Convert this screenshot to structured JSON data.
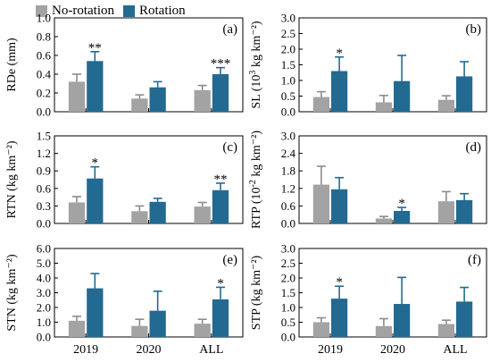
{
  "legend": {
    "no_rotation": "No-rotation",
    "rotation": "Rotation"
  },
  "colors": {
    "no_rotation": "#a3a3a3",
    "rotation": "#236a92",
    "error_bar": "#236a92",
    "error_bar_gray": "#8c8c8c"
  },
  "chart_data": [
    {
      "type": "bar",
      "panel": "(a)",
      "ylabel": "RDe (mm)",
      "ylabel_sup": "",
      "ylabel_tail": "",
      "categories": [
        "2019",
        "2020",
        "ALL"
      ],
      "ylim": [
        0,
        1.0
      ],
      "yticks": [
        "0.0",
        "0.2",
        "0.4",
        "0.6",
        "0.8",
        "1.0"
      ],
      "series": [
        {
          "name": "No-rotation",
          "values": [
            0.32,
            0.14,
            0.23
          ],
          "errors": [
            0.08,
            0.04,
            0.05
          ]
        },
        {
          "name": "Rotation",
          "values": [
            0.54,
            0.26,
            0.4
          ],
          "errors": [
            0.1,
            0.06,
            0.07
          ]
        }
      ],
      "significance": [
        "**",
        "",
        "***"
      ],
      "show_xticklabels": false
    },
    {
      "type": "bar",
      "panel": "(b)",
      "ylabel": "SL (10",
      "ylabel_sup": "3",
      "ylabel_tail": " kg km⁻²)",
      "categories": [
        "2019",
        "2020",
        "ALL"
      ],
      "ylim": [
        0,
        3.0
      ],
      "yticks": [
        "0.0",
        "0.5",
        "1.0",
        "1.5",
        "2.0",
        "2.5",
        "3.0"
      ],
      "series": [
        {
          "name": "No-rotation",
          "values": [
            0.47,
            0.3,
            0.38
          ],
          "errors": [
            0.17,
            0.22,
            0.13
          ]
        },
        {
          "name": "Rotation",
          "values": [
            1.3,
            0.98,
            1.13
          ],
          "errors": [
            0.45,
            0.82,
            0.47
          ]
        }
      ],
      "significance": [
        "*",
        "",
        ""
      ],
      "show_xticklabels": false
    },
    {
      "type": "bar",
      "panel": "(c)",
      "ylabel": "RTN (kg km⁻²)",
      "ylabel_sup": "",
      "ylabel_tail": "",
      "categories": [
        "2019",
        "2020",
        "ALL"
      ],
      "ylim": [
        0,
        1.5
      ],
      "yticks": [
        "0.0",
        "0.3",
        "0.6",
        "0.9",
        "1.2",
        "1.5"
      ],
      "series": [
        {
          "name": "No-rotation",
          "values": [
            0.36,
            0.21,
            0.29
          ],
          "errors": [
            0.1,
            0.09,
            0.07
          ]
        },
        {
          "name": "Rotation",
          "values": [
            0.77,
            0.37,
            0.57
          ],
          "errors": [
            0.2,
            0.06,
            0.12
          ]
        }
      ],
      "significance": [
        "*",
        "",
        "**"
      ],
      "show_xticklabels": false
    },
    {
      "type": "bar",
      "panel": "(d)",
      "ylabel": "RTP (10",
      "ylabel_sup": "-2",
      "ylabel_tail": " kg km⁻²)",
      "categories": [
        "2019",
        "2020",
        "ALL"
      ],
      "ylim": [
        0,
        3.0
      ],
      "yticks": [
        "0.0",
        "0.6",
        "1.2",
        "1.8",
        "2.4",
        "3.0"
      ],
      "series": [
        {
          "name": "No-rotation",
          "values": [
            1.33,
            0.17,
            0.76
          ],
          "errors": [
            0.63,
            0.07,
            0.33
          ]
        },
        {
          "name": "Rotation",
          "values": [
            1.17,
            0.43,
            0.8
          ],
          "errors": [
            0.4,
            0.12,
            0.22
          ]
        }
      ],
      "significance": [
        "",
        "*",
        ""
      ],
      "show_xticklabels": false
    },
    {
      "type": "bar",
      "panel": "(e)",
      "ylabel": "STN (kg km⁻²)",
      "ylabel_sup": "",
      "ylabel_tail": "",
      "categories": [
        "2019",
        "2020",
        "ALL"
      ],
      "ylim": [
        0,
        6.0
      ],
      "yticks": [
        "0.0",
        "1.0",
        "2.0",
        "3.0",
        "4.0",
        "5.0",
        "6.0"
      ],
      "series": [
        {
          "name": "No-rotation",
          "values": [
            1.1,
            0.75,
            0.9
          ],
          "errors": [
            0.3,
            0.45,
            0.3
          ]
        },
        {
          "name": "Rotation",
          "values": [
            3.3,
            1.78,
            2.55
          ],
          "errors": [
            1.0,
            1.32,
            0.82
          ]
        }
      ],
      "significance": [
        "",
        "",
        "*"
      ],
      "show_xticklabels": true
    },
    {
      "type": "bar",
      "panel": "(f)",
      "ylabel": "STP (kg km⁻²)",
      "ylabel_sup": "",
      "ylabel_tail": "",
      "categories": [
        "2019",
        "2020",
        "ALL"
      ],
      "ylim": [
        0,
        3.0
      ],
      "yticks": [
        "0.0",
        "0.5",
        "1.0",
        "1.5",
        "2.0",
        "2.5",
        "3.0"
      ],
      "series": [
        {
          "name": "No-rotation",
          "values": [
            0.5,
            0.37,
            0.44
          ],
          "errors": [
            0.15,
            0.25,
            0.13
          ]
        },
        {
          "name": "Rotation",
          "values": [
            1.3,
            1.12,
            1.2
          ],
          "errors": [
            0.42,
            0.9,
            0.48
          ]
        }
      ],
      "significance": [
        "*",
        "",
        ""
      ],
      "show_xticklabels": true
    }
  ]
}
